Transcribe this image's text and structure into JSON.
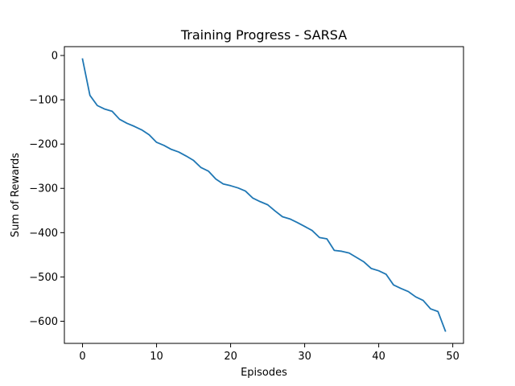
{
  "chart_data": {
    "type": "line",
    "title": "Training Progress - SARSA",
    "xlabel": "Episodes",
    "ylabel": "Sum of Rewards",
    "xlim": [
      -2.45,
      51.45
    ],
    "ylim": [
      -650,
      20
    ],
    "xticks": [
      0,
      10,
      20,
      30,
      40,
      50
    ],
    "yticks": [
      0,
      -100,
      -200,
      -300,
      -400,
      -500,
      -600
    ],
    "grid": false,
    "legend": "none",
    "series": [
      {
        "color": "#1f77b4",
        "x": [
          0,
          1,
          2,
          3,
          4,
          5,
          6,
          7,
          8,
          9,
          10,
          11,
          12,
          13,
          14,
          15,
          16,
          17,
          18,
          19,
          20,
          21,
          22,
          23,
          24,
          25,
          26,
          27,
          28,
          29,
          30,
          31,
          32,
          33,
          34,
          35,
          36,
          37,
          38,
          39,
          40,
          41,
          42,
          43,
          44,
          45,
          46,
          47,
          48,
          49
        ],
        "y": [
          -8,
          -90,
          -113,
          -121,
          -126,
          -144,
          -153,
          -160,
          -168,
          -179,
          -196,
          -203,
          -212,
          -218,
          -227,
          -237,
          -253,
          -261,
          -279,
          -290,
          -294,
          -299,
          -306,
          -322,
          -330,
          -337,
          -351,
          -364,
          -369,
          -377,
          -386,
          -395,
          -411,
          -414,
          -440,
          -442,
          -446,
          -456,
          -466,
          -481,
          -486,
          -494,
          -518,
          -526,
          -533,
          -545,
          -553,
          -572,
          -578,
          -622
        ]
      }
    ]
  }
}
